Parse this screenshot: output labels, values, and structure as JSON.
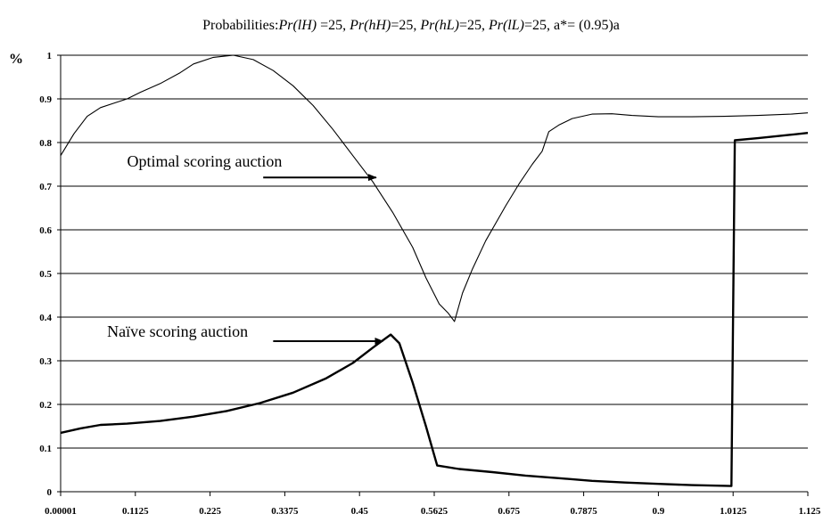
{
  "chart_data": {
    "type": "line",
    "title_parts": [
      {
        "text": "Probabilities:",
        "italic": false
      },
      {
        "text": "Pr(lH)",
        "italic": true
      },
      {
        "text": " =25, ",
        "italic": false
      },
      {
        "text": "Pr(hH)",
        "italic": true
      },
      {
        "text": "=25, ",
        "italic": false
      },
      {
        "text": "Pr(hL)",
        "italic": true
      },
      {
        "text": "=25, ",
        "italic": false
      },
      {
        "text": "Pr(lL)",
        "italic": true
      },
      {
        "text": "=25, ",
        "italic": false
      },
      {
        "text": "a*= (0.95)a",
        "italic": false
      }
    ],
    "ylabel": "%",
    "xlabel": "",
    "xlim": [
      1e-05,
      1.125
    ],
    "ylim": [
      0,
      1
    ],
    "x_ticks": [
      1e-05,
      0.1125,
      0.225,
      0.3375,
      0.45,
      0.5625,
      0.675,
      0.7875,
      0.9,
      1.0125,
      1.125
    ],
    "x_tick_labels": [
      "0.00001",
      "0.1125",
      "0.225",
      "0.3375",
      "0.45",
      "0.5625",
      "0.675",
      "0.7875",
      "0.9",
      "1.0125",
      "1.125"
    ],
    "y_ticks": [
      0,
      0.1,
      0.2,
      0.3,
      0.4,
      0.5,
      0.6,
      0.7,
      0.8,
      0.9,
      1
    ],
    "y_tick_labels": [
      "0",
      "0.1",
      "0.2",
      "0.3",
      "0.4",
      "0.5",
      "0.6",
      "0.7",
      "0.8",
      "0.9",
      "1"
    ],
    "grid": "horizontal",
    "series": [
      {
        "key": "optimal",
        "color": "#000000",
        "thickness": "thin",
        "points": [
          [
            1e-05,
            0.77
          ],
          [
            0.02,
            0.82
          ],
          [
            0.04,
            0.86
          ],
          [
            0.06,
            0.88
          ],
          [
            0.08,
            0.89
          ],
          [
            0.1,
            0.9
          ],
          [
            0.12,
            0.915
          ],
          [
            0.15,
            0.935
          ],
          [
            0.18,
            0.96
          ],
          [
            0.2,
            0.98
          ],
          [
            0.23,
            0.995
          ],
          [
            0.26,
            1.0
          ],
          [
            0.29,
            0.99
          ],
          [
            0.32,
            0.965
          ],
          [
            0.35,
            0.93
          ],
          [
            0.38,
            0.885
          ],
          [
            0.41,
            0.83
          ],
          [
            0.44,
            0.77
          ],
          [
            0.47,
            0.71
          ],
          [
            0.5,
            0.64
          ],
          [
            0.53,
            0.56
          ],
          [
            0.55,
            0.49
          ],
          [
            0.57,
            0.43
          ],
          [
            0.583,
            0.41
          ],
          [
            0.593,
            0.39
          ],
          [
            0.605,
            0.455
          ],
          [
            0.62,
            0.51
          ],
          [
            0.64,
            0.575
          ],
          [
            0.67,
            0.655
          ],
          [
            0.69,
            0.705
          ],
          [
            0.71,
            0.75
          ],
          [
            0.725,
            0.78
          ],
          [
            0.735,
            0.825
          ],
          [
            0.75,
            0.84
          ],
          [
            0.77,
            0.855
          ],
          [
            0.8,
            0.865
          ],
          [
            0.83,
            0.866
          ],
          [
            0.86,
            0.862
          ],
          [
            0.9,
            0.859
          ],
          [
            0.95,
            0.859
          ],
          [
            1.0,
            0.86
          ],
          [
            1.05,
            0.862
          ],
          [
            1.1,
            0.865
          ],
          [
            1.125,
            0.868
          ]
        ]
      },
      {
        "key": "naive",
        "color": "#000000",
        "thickness": "thick",
        "points": [
          [
            1e-05,
            0.135
          ],
          [
            0.03,
            0.145
          ],
          [
            0.06,
            0.153
          ],
          [
            0.1,
            0.156
          ],
          [
            0.15,
            0.162
          ],
          [
            0.2,
            0.172
          ],
          [
            0.25,
            0.185
          ],
          [
            0.3,
            0.203
          ],
          [
            0.35,
            0.227
          ],
          [
            0.4,
            0.26
          ],
          [
            0.44,
            0.295
          ],
          [
            0.47,
            0.33
          ],
          [
            0.497,
            0.36
          ],
          [
            0.51,
            0.34
          ],
          [
            0.53,
            0.25
          ],
          [
            0.55,
            0.15
          ],
          [
            0.567,
            0.06
          ],
          [
            0.6,
            0.052
          ],
          [
            0.65,
            0.045
          ],
          [
            0.7,
            0.037
          ],
          [
            0.75,
            0.031
          ],
          [
            0.8,
            0.025
          ],
          [
            0.85,
            0.021
          ],
          [
            0.9,
            0.018
          ],
          [
            0.95,
            0.015
          ],
          [
            1.01,
            0.013
          ],
          [
            1.015,
            0.805
          ],
          [
            1.05,
            0.81
          ],
          [
            1.1,
            0.818
          ],
          [
            1.125,
            0.822
          ]
        ]
      }
    ],
    "annotations": [
      {
        "text": "Optimal scoring auction",
        "text_x": 0.1,
        "text_y": 0.745,
        "arrow_from": [
          0.305,
          0.72
        ],
        "arrow_to": [
          0.475,
          0.72
        ]
      },
      {
        "text": "Naïve scoring auction",
        "text_x": 0.07,
        "text_y": 0.355,
        "arrow_from": [
          0.32,
          0.345
        ],
        "arrow_to": [
          0.485,
          0.345
        ]
      }
    ]
  }
}
